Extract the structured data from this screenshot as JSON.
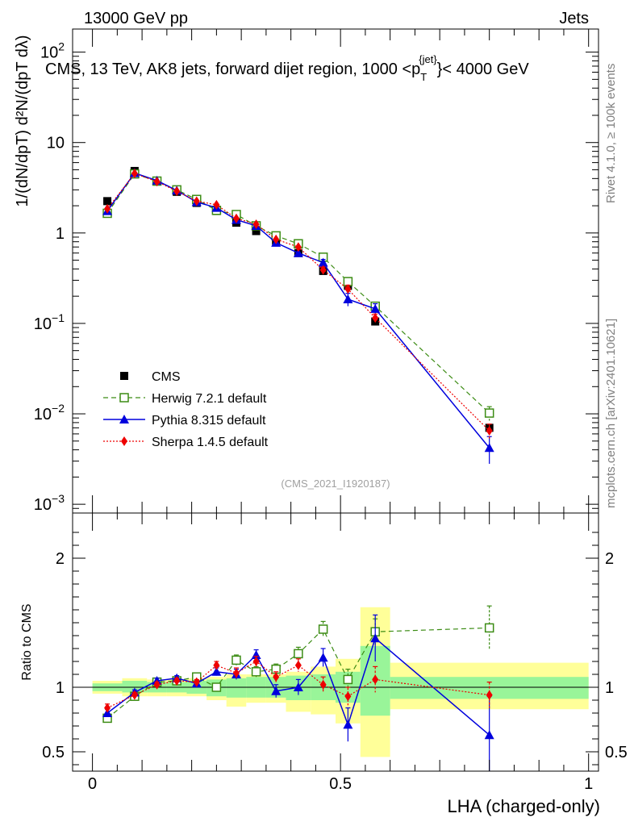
{
  "header": {
    "left": "13000 GeV pp",
    "right": "Jets",
    "title": "CMS, 13 TeV, AK8 jets, forward dijet region, 1000 <p",
    "title_sub": "T",
    "title_sup": "{jet}",
    "title_end": "}< 4000 GeV",
    "side_rivet": "Rivet 4.1.0, ≥ 100k events",
    "side_mcplots": "mcplots.cern.ch [arXiv:2401.10621]",
    "analysis_id": "(CMS_2021_I1920187)"
  },
  "colors": {
    "cms": "#000000",
    "herwig": "#3c8c14",
    "pythia": "#0000dd",
    "sherpa": "#ee0000",
    "band_inner": "#99f599",
    "band_outer": "#ffff99"
  },
  "chart_data": [
    {
      "type": "scatter",
      "panel": "main",
      "ylabel": "1/(dN/dpT) d²N/(dpT dλ)",
      "yscale": "log",
      "ylim": [
        0.0008,
        180
      ],
      "xlim": [
        -0.04,
        1.02
      ],
      "yticks": [
        {
          "value": 0.001,
          "base": "10",
          "exp": "−3"
        },
        {
          "value": 0.01,
          "base": "10",
          "exp": "−2"
        },
        {
          "value": 0.1,
          "base": "10",
          "exp": "−1"
        },
        {
          "value": 1,
          "base": "1",
          "exp": ""
        },
        {
          "value": 10,
          "base": "10",
          "exp": ""
        },
        {
          "value": 100,
          "base": "10",
          "exp": "2"
        }
      ],
      "x": [
        0.03,
        0.085,
        0.13,
        0.17,
        0.21,
        0.25,
        0.29,
        0.33,
        0.37,
        0.415,
        0.465,
        0.515,
        0.57,
        0.8
      ],
      "series": [
        {
          "name": "CMS",
          "key": "cms",
          "values": [
            2.25,
            4.85,
            3.7,
            2.85,
            2.15,
            1.75,
            1.3,
            1.05,
            0.82,
            0.6,
            0.38,
            0.26,
            0.105,
            0.007
          ]
        },
        {
          "name": "Herwig 7.2.1 default",
          "key": "herwig",
          "values": [
            1.65,
            4.5,
            3.75,
            3.0,
            2.35,
            1.78,
            1.6,
            1.2,
            0.93,
            0.76,
            0.54,
            0.29,
            0.155,
            0.0102
          ],
          "errors": [
            0,
            0,
            0,
            0,
            0,
            0,
            0,
            0,
            0,
            0,
            0.03,
            0.025,
            0.012,
            0.0018
          ]
        },
        {
          "name": "Pythia 8.315 default",
          "key": "pythia",
          "values": [
            1.75,
            4.6,
            3.8,
            2.95,
            2.2,
            1.9,
            1.4,
            1.2,
            0.78,
            0.6,
            0.47,
            0.185,
            0.145,
            0.0042
          ],
          "errors": [
            0,
            0,
            0,
            0,
            0,
            0,
            0,
            0,
            0,
            0,
            0.04,
            0.03,
            0.02,
            0.0014
          ]
        },
        {
          "name": "Sherpa 1.4.5 default",
          "key": "sherpa",
          "values": [
            1.85,
            4.55,
            3.7,
            2.9,
            2.25,
            2.05,
            1.45,
            1.25,
            0.85,
            0.7,
            0.39,
            0.24,
            0.115,
            0.0065
          ],
          "errors": [
            0,
            0,
            0,
            0,
            0,
            0,
            0,
            0,
            0,
            0,
            0.03,
            0.025,
            0.012,
            0.0012
          ]
        }
      ]
    },
    {
      "type": "scatter",
      "panel": "ratio",
      "ylabel": "Ratio to CMS",
      "xlabel": "LHA (charged-only)",
      "ylim": [
        0.35,
        2.35
      ],
      "xlim": [
        -0.04,
        1.02
      ],
      "yticks": [
        0.5,
        1,
        2
      ],
      "xticks": [
        0,
        0.5,
        1
      ],
      "xticklabels": [
        "0",
        "0.5",
        "1"
      ],
      "bands": [
        {
          "x0": 0.0,
          "x1": 0.06,
          "inner": [
            0.97,
            1.03
          ],
          "outer": [
            0.95,
            1.05
          ]
        },
        {
          "x0": 0.06,
          "x1": 0.11,
          "inner": [
            0.96,
            1.05
          ],
          "outer": [
            0.93,
            1.07
          ]
        },
        {
          "x0": 0.11,
          "x1": 0.15,
          "inner": [
            0.96,
            1.04
          ],
          "outer": [
            0.93,
            1.06
          ]
        },
        {
          "x0": 0.15,
          "x1": 0.19,
          "inner": [
            0.96,
            1.04
          ],
          "outer": [
            0.93,
            1.06
          ]
        },
        {
          "x0": 0.19,
          "x1": 0.23,
          "inner": [
            0.95,
            1.05
          ],
          "outer": [
            0.93,
            1.07
          ]
        },
        {
          "x0": 0.23,
          "x1": 0.27,
          "inner": [
            0.93,
            1.06
          ],
          "outer": [
            0.9,
            1.08
          ]
        },
        {
          "x0": 0.27,
          "x1": 0.31,
          "inner": [
            0.92,
            1.07
          ],
          "outer": [
            0.85,
            1.1
          ]
        },
        {
          "x0": 0.31,
          "x1": 0.35,
          "inner": [
            0.92,
            1.08
          ],
          "outer": [
            0.88,
            1.1
          ]
        },
        {
          "x0": 0.35,
          "x1": 0.39,
          "inner": [
            0.92,
            1.08
          ],
          "outer": [
            0.88,
            1.1
          ]
        },
        {
          "x0": 0.39,
          "x1": 0.44,
          "inner": [
            0.9,
            1.09
          ],
          "outer": [
            0.81,
            1.12
          ]
        },
        {
          "x0": 0.44,
          "x1": 0.49,
          "inner": [
            0.9,
            1.1
          ],
          "outer": [
            0.79,
            1.16
          ]
        },
        {
          "x0": 0.49,
          "x1": 0.54,
          "inner": [
            0.88,
            1.12
          ],
          "outer": [
            0.72,
            1.22
          ]
        },
        {
          "x0": 0.54,
          "x1": 0.6,
          "inner": [
            0.78,
            1.32
          ],
          "outer": [
            0.46,
            1.62
          ]
        },
        {
          "x0": 0.6,
          "x1": 1.0,
          "inner": [
            0.91,
            1.08
          ],
          "outer": [
            0.83,
            1.19
          ]
        }
      ],
      "x": [
        0.03,
        0.085,
        0.13,
        0.17,
        0.21,
        0.25,
        0.29,
        0.33,
        0.37,
        0.415,
        0.465,
        0.515,
        0.57,
        0.8
      ],
      "series": [
        {
          "name": "Herwig 7.2.1 default",
          "key": "herwig",
          "values": [
            0.76,
            0.93,
            1.04,
            1.05,
            1.08,
            1.0,
            1.21,
            1.12,
            1.14,
            1.26,
            1.45,
            1.06,
            1.43,
            1.46
          ],
          "errors": [
            0.03,
            0.02,
            0.02,
            0.02,
            0.02,
            0.03,
            0.04,
            0.04,
            0.04,
            0.05,
            0.06,
            0.08,
            0.1,
            0.17
          ]
        },
        {
          "name": "Pythia 8.315 default",
          "key": "pythia",
          "values": [
            0.8,
            0.96,
            1.05,
            1.07,
            1.03,
            1.12,
            1.1,
            1.25,
            0.97,
            1.0,
            1.23,
            0.71,
            1.38,
            0.63
          ],
          "errors": [
            0.03,
            0.02,
            0.02,
            0.02,
            0.02,
            0.03,
            0.04,
            0.04,
            0.05,
            0.06,
            0.07,
            0.13,
            0.18,
            0.3
          ]
        },
        {
          "name": "Sherpa 1.4.5 default",
          "key": "sherpa",
          "values": [
            0.84,
            0.94,
            1.02,
            1.05,
            1.04,
            1.17,
            1.11,
            1.2,
            1.08,
            1.17,
            1.02,
            0.93,
            1.06,
            0.94
          ],
          "errors": [
            0.03,
            0.02,
            0.02,
            0.02,
            0.02,
            0.03,
            0.04,
            0.04,
            0.04,
            0.05,
            0.06,
            0.07,
            0.1,
            0.1
          ]
        }
      ]
    }
  ]
}
